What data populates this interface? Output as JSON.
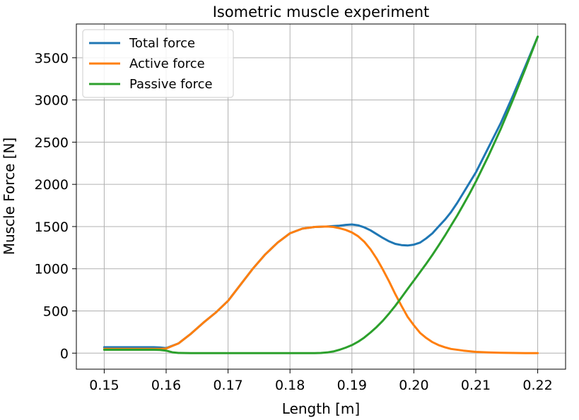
{
  "chart_data": {
    "type": "line",
    "title": "Isometric muscle experiment",
    "xlabel": "Length [m]",
    "ylabel": "Muscle Force [N]",
    "xlim": [
      0.1455,
      0.2245
    ],
    "ylim": [
      -190,
      3900
    ],
    "xticks": [
      0.15,
      0.16,
      0.17,
      0.18,
      0.19,
      0.2,
      0.21,
      0.22
    ],
    "xtick_labels": [
      "0.15",
      "0.16",
      "0.17",
      "0.18",
      "0.19",
      "0.20",
      "0.21",
      "0.22"
    ],
    "yticks": [
      0,
      500,
      1000,
      1500,
      2000,
      2500,
      3000,
      3500
    ],
    "ytick_labels": [
      "0",
      "500",
      "1000",
      "1500",
      "2000",
      "2500",
      "3000",
      "3500"
    ],
    "grid": true,
    "legend_position": "top-left",
    "series": [
      {
        "name": "Total force",
        "color": "#1f77b4",
        "x": [
          0.15,
          0.152,
          0.154,
          0.156,
          0.158,
          0.159,
          0.16,
          0.162,
          0.164,
          0.166,
          0.168,
          0.17,
          0.172,
          0.174,
          0.176,
          0.178,
          0.18,
          0.182,
          0.184,
          0.186,
          0.187,
          0.188,
          0.189,
          0.19,
          0.191,
          0.192,
          0.193,
          0.194,
          0.195,
          0.196,
          0.197,
          0.198,
          0.199,
          0.2,
          0.201,
          0.202,
          0.203,
          0.204,
          0.205,
          0.206,
          0.207,
          0.208,
          0.209,
          0.21,
          0.212,
          0.214,
          0.216,
          0.218,
          0.22
        ],
        "y": [
          70,
          70,
          70,
          70,
          70,
          68,
          60,
          115,
          230,
          360,
          480,
          620,
          810,
          1000,
          1170,
          1310,
          1420,
          1475,
          1495,
          1500,
          1505,
          1510,
          1520,
          1525,
          1515,
          1490,
          1455,
          1410,
          1365,
          1325,
          1295,
          1280,
          1275,
          1285,
          1310,
          1360,
          1420,
          1500,
          1580,
          1670,
          1780,
          1900,
          2020,
          2140,
          2430,
          2720,
          3050,
          3400,
          3750
        ]
      },
      {
        "name": "Active force",
        "color": "#ff7f0e",
        "x": [
          0.15,
          0.152,
          0.154,
          0.156,
          0.158,
          0.159,
          0.16,
          0.162,
          0.164,
          0.166,
          0.168,
          0.17,
          0.172,
          0.174,
          0.176,
          0.178,
          0.18,
          0.182,
          0.184,
          0.186,
          0.187,
          0.188,
          0.189,
          0.19,
          0.191,
          0.192,
          0.193,
          0.194,
          0.195,
          0.196,
          0.197,
          0.198,
          0.199,
          0.2,
          0.201,
          0.202,
          0.203,
          0.204,
          0.205,
          0.206,
          0.208,
          0.21,
          0.212,
          0.214,
          0.216,
          0.218,
          0.22
        ],
        "y": [
          50,
          50,
          50,
          50,
          50,
          50,
          55,
          115,
          230,
          360,
          480,
          620,
          810,
          1000,
          1170,
          1310,
          1420,
          1475,
          1495,
          1500,
          1495,
          1480,
          1460,
          1430,
          1385,
          1320,
          1230,
          1120,
          990,
          850,
          700,
          560,
          430,
          330,
          240,
          180,
          130,
          95,
          70,
          50,
          30,
          15,
          8,
          4,
          2,
          1,
          0
        ]
      },
      {
        "name": "Passive force",
        "color": "#2ca02c",
        "x": [
          0.15,
          0.152,
          0.154,
          0.156,
          0.158,
          0.159,
          0.16,
          0.161,
          0.162,
          0.164,
          0.166,
          0.17,
          0.175,
          0.18,
          0.184,
          0.185,
          0.186,
          0.187,
          0.188,
          0.189,
          0.19,
          0.191,
          0.192,
          0.193,
          0.194,
          0.195,
          0.196,
          0.197,
          0.198,
          0.199,
          0.2,
          0.201,
          0.202,
          0.203,
          0.204,
          0.205,
          0.206,
          0.207,
          0.208,
          0.209,
          0.21,
          0.212,
          0.214,
          0.216,
          0.218,
          0.22
        ],
        "y": [
          40,
          40,
          40,
          40,
          40,
          38,
          30,
          10,
          2,
          0,
          0,
          0,
          0,
          0,
          0,
          2,
          8,
          20,
          40,
          65,
          95,
          135,
          185,
          245,
          310,
          385,
          470,
          560,
          660,
          760,
          860,
          960,
          1060,
          1165,
          1275,
          1390,
          1510,
          1630,
          1760,
          1890,
          2030,
          2330,
          2650,
          3000,
          3370,
          3750
        ]
      }
    ]
  }
}
